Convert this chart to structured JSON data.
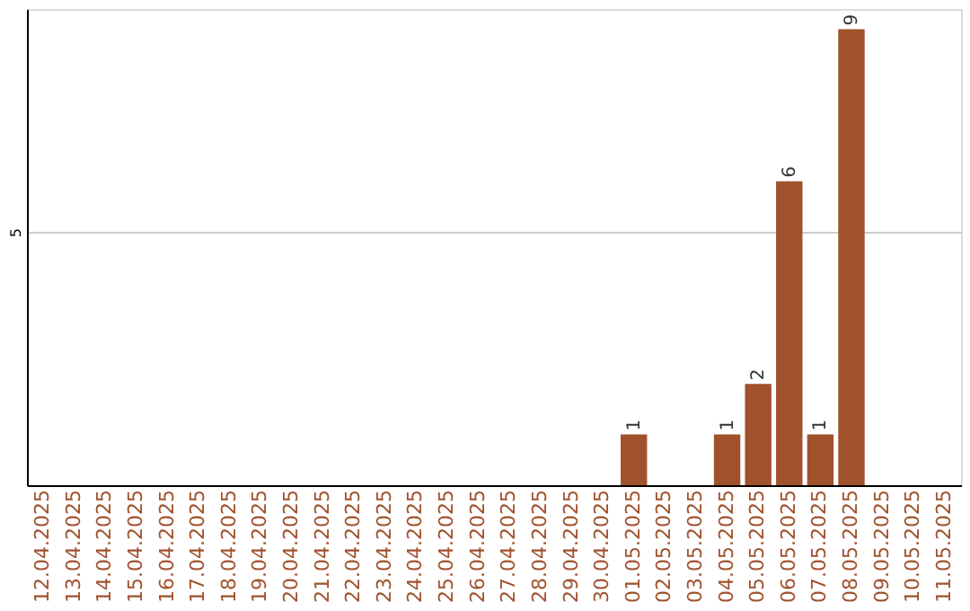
{
  "chart_data": {
    "type": "bar",
    "categories": [
      "12.04.2025",
      "13.04.2025",
      "14.04.2025",
      "15.04.2025",
      "16.04.2025",
      "17.04.2025",
      "18.04.2025",
      "19.04.2025",
      "20.04.2025",
      "21.04.2025",
      "22.04.2025",
      "23.04.2025",
      "24.04.2025",
      "25.04.2025",
      "26.04.2025",
      "27.04.2025",
      "28.04.2025",
      "29.04.2025",
      "30.04.2025",
      "01.05.2025",
      "02.05.2025",
      "03.05.2025",
      "04.05.2025",
      "05.05.2025",
      "06.05.2025",
      "07.05.2025",
      "08.05.2025",
      "09.05.2025",
      "10.05.2025",
      "11.05.2025"
    ],
    "values": [
      null,
      null,
      null,
      null,
      null,
      null,
      null,
      null,
      null,
      null,
      null,
      null,
      null,
      null,
      null,
      null,
      null,
      null,
      null,
      1,
      null,
      null,
      1,
      2,
      6,
      1,
      9,
      null,
      null,
      null
    ],
    "color": "#a0522d",
    "ylim": [
      0,
      9.4
    ],
    "yticks": [
      5
    ],
    "grid": "y",
    "data_labels": true
  }
}
